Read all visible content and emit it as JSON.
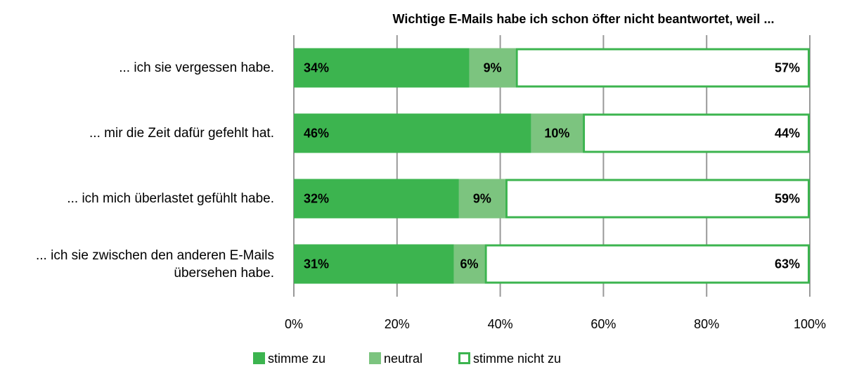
{
  "chart_data": {
    "type": "stacked-bar-horizontal",
    "title": "Wichtige E-Mails habe ich schon öfter nicht beantwortet, weil ...",
    "categories": [
      "... ich sie vergessen habe.",
      "... mir die Zeit dafür gefehlt hat.",
      "... ich mich überlastet gefühlt habe.",
      "... ich sie zwischen den anderen E-Mails übersehen habe."
    ],
    "series": [
      {
        "name": "stimme zu",
        "color": "#3cb44f",
        "values": [
          34,
          46,
          32,
          31
        ],
        "value_labels": [
          "34%",
          "46%",
          "32%",
          "31%"
        ]
      },
      {
        "name": "neutral",
        "color": "#7cc47f",
        "values": [
          9,
          10,
          9,
          6
        ],
        "value_labels": [
          "9%",
          "10%",
          "9%",
          "6%"
        ]
      },
      {
        "name": "stimme nicht zu",
        "color": "#ffffff",
        "values": [
          57,
          44,
          59,
          63
        ],
        "value_labels": [
          "57%",
          "44%",
          "59%",
          "63%"
        ]
      }
    ],
    "border_color": "#3cb44f",
    "xlim": [
      0,
      100
    ],
    "xticks": [
      {
        "value": 0,
        "label": "0%"
      },
      {
        "value": 20,
        "label": "20%"
      },
      {
        "value": 40,
        "label": "40%"
      },
      {
        "value": 60,
        "label": "60%"
      },
      {
        "value": 80,
        "label": "80%"
      },
      {
        "value": 100,
        "label": "100%"
      }
    ],
    "grid": true,
    "legend": "bottom"
  }
}
